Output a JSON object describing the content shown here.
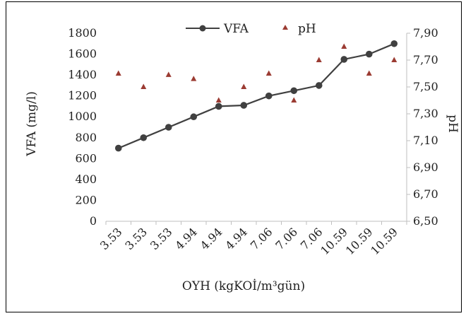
{
  "chart_data": {
    "type": "line",
    "categories": [
      "3.53",
      "3.53",
      "3.53",
      "4.94",
      "4.94",
      "4.94",
      "7.06",
      "7.06",
      "7.06",
      "10.59",
      "10.59",
      "10.59"
    ],
    "xlabel": "OYH (kgKOİ/m³gün)",
    "ylabel": "VFA (mg/l)",
    "y2label": "pH",
    "ylim": [
      0,
      1800
    ],
    "y2lim": [
      6.5,
      7.9
    ],
    "yticks": [
      "0",
      "200",
      "400",
      "600",
      "800",
      "1000",
      "1200",
      "1400",
      "1600",
      "1800"
    ],
    "y2ticks": [
      "6,50",
      "6,70",
      "6,90",
      "7,10",
      "7,30",
      "7,50",
      "7,70",
      "7,90"
    ],
    "grid": false,
    "legend_position": "top-center",
    "series": [
      {
        "name": "VFA",
        "type": "line",
        "axis": "left",
        "color": "#404040",
        "values": [
          700,
          800,
          900,
          1000,
          1100,
          1110,
          1200,
          1250,
          1300,
          1550,
          1600,
          1700
        ]
      },
      {
        "name": "pH",
        "type": "scatter",
        "axis": "right",
        "color": "#9b3b32",
        "values": [
          7.6,
          7.5,
          7.59,
          7.56,
          7.4,
          7.5,
          7.6,
          7.4,
          7.7,
          7.8,
          7.6,
          7.7
        ]
      }
    ]
  }
}
